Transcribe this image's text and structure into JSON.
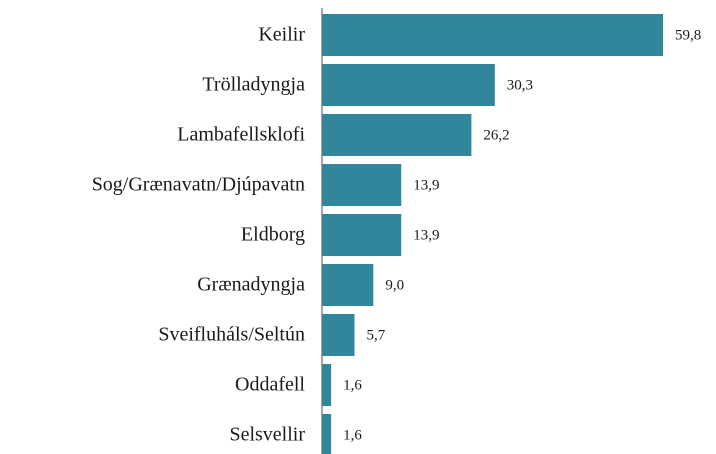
{
  "chart_data": {
    "type": "barh",
    "categories": [
      "Keilir",
      "Trölladyngja",
      "Lambafellsklofi",
      "Sog/Grænavatn/Djúpavatn",
      "Eldborg",
      "Grænadyngja",
      "Sveifluháls/Seltún",
      "Oddafell",
      "Selsvellir"
    ],
    "values": [
      59.8,
      30.3,
      26.2,
      13.9,
      13.9,
      9.0,
      5.7,
      1.6,
      1.6
    ],
    "value_labels": [
      "59,8",
      "30,3",
      "26,2",
      "13,9",
      "13,9",
      "9,0",
      "5,7",
      "1,6",
      "1,6"
    ],
    "color": "#31869b"
  }
}
